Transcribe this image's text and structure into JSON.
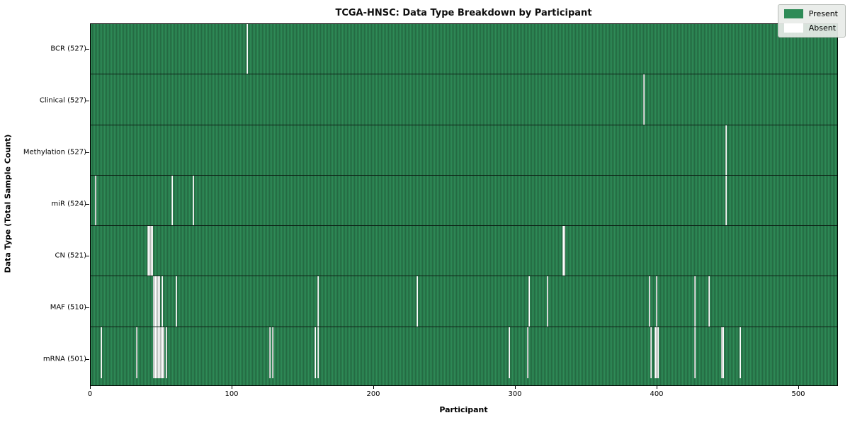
{
  "chart_data": {
    "type": "heatmap",
    "title": "TCGA-HNSC: Data Type Breakdown by Participant",
    "xlabel": "Participant",
    "ylabel": "Data Type (Total Sample Count)",
    "x_ticks": [
      0,
      100,
      200,
      300,
      400,
      500
    ],
    "x_max": 527,
    "grid": false,
    "legend_position": "upper right",
    "legend": [
      {
        "label": "Present",
        "color": "#2e8b57"
      },
      {
        "label": "Absent",
        "color": "#ffffff"
      }
    ],
    "cell_colors": {
      "present": "#2e8b57",
      "absent": "#ffffff",
      "edge": "#0d1f15"
    },
    "rows": [
      {
        "label": "BCR (527)",
        "total_samples": 527,
        "absent_participants": [
          110
        ]
      },
      {
        "label": "Clinical (527)",
        "total_samples": 527,
        "absent_participants": [
          390
        ]
      },
      {
        "label": "Methylation (527)",
        "total_samples": 527,
        "absent_participants": [
          448
        ]
      },
      {
        "label": "miR (524)",
        "total_samples": 524,
        "absent_participants": [
          3,
          57,
          72,
          448
        ]
      },
      {
        "label": "CN (521)",
        "total_samples": 521,
        "absent_participants": [
          40,
          41,
          42,
          43,
          333,
          334
        ]
      },
      {
        "label": "MAF (510)",
        "total_samples": 510,
        "absent_participants": [
          44,
          45,
          46,
          47,
          48,
          50,
          60,
          160,
          230,
          309,
          322,
          394,
          399,
          426,
          436
        ]
      },
      {
        "label": "mRNA (501)",
        "total_samples": 501,
        "absent_participants": [
          7,
          32,
          44,
          45,
          46,
          47,
          48,
          49,
          50,
          51,
          53,
          126,
          128,
          158,
          160,
          295,
          308,
          395,
          398,
          399,
          400,
          426,
          445,
          446,
          458
        ]
      }
    ]
  }
}
